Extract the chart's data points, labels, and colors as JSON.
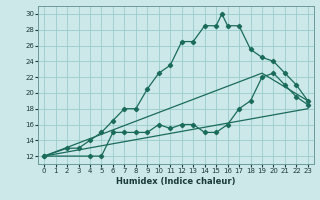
{
  "xlabel": "Humidex (Indice chaleur)",
  "bg_color": "#cce8e8",
  "grid_color": "#99cccc",
  "line_color": "#1a6b5a",
  "xlim": [
    -0.5,
    23.5
  ],
  "ylim": [
    11,
    31
  ],
  "xticks": [
    0,
    1,
    2,
    3,
    4,
    5,
    6,
    7,
    8,
    9,
    10,
    11,
    12,
    13,
    14,
    15,
    16,
    17,
    18,
    19,
    20,
    21,
    22,
    23
  ],
  "yticks": [
    12,
    14,
    16,
    18,
    20,
    22,
    24,
    26,
    28,
    30
  ],
  "series1_x": [
    0,
    2,
    3,
    4,
    5,
    6,
    7,
    8,
    9,
    10,
    11,
    12,
    13,
    14,
    15,
    15.5,
    16,
    17,
    18,
    19,
    20,
    21,
    22,
    23
  ],
  "series1_y": [
    12,
    13,
    13,
    14,
    15,
    16.5,
    18,
    18.0,
    20.5,
    22.5,
    23.5,
    26.5,
    26.5,
    28.5,
    28.5,
    30.0,
    28.5,
    28.5,
    25.5,
    24.5,
    24.0,
    22.5,
    21.0,
    19.0
  ],
  "series2_x": [
    0,
    4,
    5,
    6,
    7,
    8,
    9,
    10,
    11,
    12,
    13,
    14,
    15,
    16,
    17,
    18,
    19,
    20,
    21,
    22,
    23
  ],
  "series2_y": [
    12,
    12,
    12,
    15,
    15,
    15,
    15,
    16,
    15.5,
    16,
    16,
    15,
    15,
    16,
    18,
    19,
    22,
    22.5,
    21,
    19.5,
    18.5
  ],
  "series3_x": [
    0,
    23
  ],
  "series3_y": [
    12,
    18
  ],
  "series4_x": [
    0,
    19,
    23
  ],
  "series4_y": [
    12,
    22.5,
    19
  ]
}
